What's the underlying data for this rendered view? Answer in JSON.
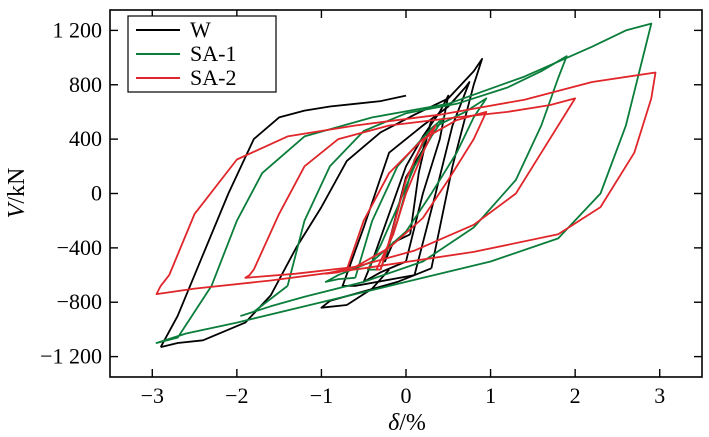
{
  "chart_data": {
    "type": "line",
    "title": "",
    "xlabel_symbol": "δ",
    "xlabel_unit": "/%",
    "ylabel_symbol": "V",
    "ylabel_unit": "/kN",
    "xlim": [
      -3.5,
      3.5
    ],
    "ylim": [
      -1350,
      1350
    ],
    "x_ticks": [
      -3,
      -2,
      -1,
      0,
      1,
      2,
      3
    ],
    "x_tick_labels": [
      "−3",
      "−2",
      "−1",
      "0",
      "1",
      "2",
      "3"
    ],
    "y_ticks": [
      -1200,
      -800,
      -400,
      0,
      400,
      800,
      1200
    ],
    "y_tick_labels": [
      "−1 200",
      "−800",
      "−400",
      "0",
      "400",
      "800",
      "1 200"
    ],
    "grid": false,
    "legend_position": "top-left",
    "series": [
      {
        "name": "W",
        "color": "#000000",
        "loops": [
          [
            [
              0.05,
              -300
            ],
            [
              0.15,
              150
            ],
            [
              0.25,
              420
            ],
            [
              0.3,
              540
            ],
            [
              0.2,
              320
            ],
            [
              0,
              120
            ],
            [
              -0.1,
              -120
            ],
            [
              -0.2,
              -360
            ],
            [
              -0.25,
              -500
            ],
            [
              -0.15,
              -360
            ],
            [
              0.05,
              -300
            ]
          ],
          [
            [
              0,
              -500
            ],
            [
              0.2,
              0
            ],
            [
              0.4,
              400
            ],
            [
              0.5,
              720
            ],
            [
              0.4,
              600
            ],
            [
              0.2,
              420
            ],
            [
              0,
              200
            ],
            [
              -0.2,
              -150
            ],
            [
              -0.4,
              -500
            ],
            [
              -0.5,
              -650
            ],
            [
              -0.3,
              -580
            ],
            [
              0,
              -500
            ]
          ],
          [
            [
              0.1,
              -600
            ],
            [
              0.35,
              0
            ],
            [
              0.55,
              500
            ],
            [
              0.75,
              820
            ],
            [
              0.7,
              780
            ],
            [
              0.5,
              640
            ],
            [
              0.2,
              500
            ],
            [
              -0.2,
              300
            ],
            [
              -0.5,
              -250
            ],
            [
              -0.75,
              -680
            ],
            [
              -0.6,
              -680
            ],
            [
              0.1,
              -600
            ]
          ],
          [
            [
              0.3,
              -550
            ],
            [
              0.55,
              200
            ],
            [
              0.8,
              800
            ],
            [
              0.9,
              990
            ],
            [
              0.8,
              900
            ],
            [
              0.5,
              700
            ],
            [
              0.1,
              580
            ],
            [
              -0.3,
              450
            ],
            [
              -0.7,
              240
            ],
            [
              -1.0,
              -100
            ],
            [
              -1.3,
              -400
            ],
            [
              -1.6,
              -750
            ],
            [
              -1.9,
              -950
            ],
            [
              -2.4,
              -1080
            ],
            [
              -2.7,
              -1100
            ],
            [
              -2.9,
              -1130
            ]
          ],
          [
            [
              -2.9,
              -1130
            ],
            [
              -2.7,
              -900
            ],
            [
              -2.4,
              -450
            ],
            [
              -2.1,
              0
            ],
            [
              -1.8,
              400
            ],
            [
              -1.5,
              560
            ],
            [
              -1.2,
              610
            ],
            [
              -0.9,
              640
            ],
            [
              -0.6,
              660
            ],
            [
              -0.3,
              680
            ],
            [
              0,
              720
            ]
          ],
          [
            [
              0.3,
              -550
            ],
            [
              -0.1,
              -650
            ],
            [
              -0.5,
              -720
            ],
            [
              -0.9,
              -790
            ],
            [
              -1.0,
              -840
            ],
            [
              -0.7,
              -820
            ],
            [
              -0.4,
              -700
            ],
            [
              -0.2,
              -560
            ]
          ]
        ]
      },
      {
        "name": "SA-1",
        "color": "#0a7d3b",
        "loops": [
          [
            [
              -0.3,
              -560
            ],
            [
              -0.1,
              -200
            ],
            [
              0.1,
              250
            ],
            [
              0.3,
              480
            ],
            [
              0.45,
              560
            ],
            [
              0.3,
              420
            ],
            [
              0.1,
              200
            ],
            [
              -0.1,
              -100
            ],
            [
              -0.3,
              -380
            ],
            [
              -0.45,
              -560
            ],
            [
              -0.3,
              -560
            ]
          ],
          [
            [
              -0.6,
              -620
            ],
            [
              -0.4,
              -200
            ],
            [
              -0.1,
              200
            ],
            [
              0.3,
              480
            ],
            [
              0.7,
              600
            ],
            [
              0.95,
              700
            ],
            [
              0.8,
              560
            ],
            [
              0.6,
              300
            ],
            [
              0.3,
              0
            ],
            [
              0,
              -280
            ],
            [
              -0.4,
              -500
            ],
            [
              -0.8,
              -600
            ],
            [
              -0.95,
              -650
            ],
            [
              -0.8,
              -630
            ],
            [
              -0.6,
              -620
            ]
          ],
          [
            [
              -1.4,
              -680
            ],
            [
              -1.2,
              -200
            ],
            [
              -0.9,
              200
            ],
            [
              -0.5,
              460
            ],
            [
              0,
              590
            ],
            [
              0.6,
              660
            ],
            [
              1.2,
              780
            ],
            [
              1.6,
              900
            ],
            [
              1.9,
              1010
            ],
            [
              1.8,
              850
            ],
            [
              1.6,
              500
            ],
            [
              1.3,
              100
            ],
            [
              0.8,
              -250
            ],
            [
              0.2,
              -500
            ],
            [
              -0.5,
              -650
            ],
            [
              -1.2,
              -760
            ],
            [
              -1.6,
              -830
            ],
            [
              -1.95,
              -900
            ],
            [
              -1.8,
              -870
            ],
            [
              -1.4,
              -680
            ]
          ],
          [
            [
              -2.3,
              -680
            ],
            [
              -2.0,
              -200
            ],
            [
              -1.7,
              150
            ],
            [
              -1.2,
              420
            ],
            [
              -0.4,
              560
            ],
            [
              0.5,
              660
            ],
            [
              1.4,
              860
            ],
            [
              2.2,
              1080
            ],
            [
              2.6,
              1200
            ],
            [
              2.9,
              1250
            ],
            [
              2.8,
              1000
            ],
            [
              2.6,
              500
            ],
            [
              2.3,
              0
            ],
            [
              1.8,
              -330
            ],
            [
              1.0,
              -500
            ],
            [
              0,
              -650
            ],
            [
              -1.0,
              -800
            ],
            [
              -2.0,
              -950
            ],
            [
              -2.6,
              -1030
            ],
            [
              -2.95,
              -1100
            ],
            [
              -2.7,
              -1060
            ],
            [
              -2.3,
              -680
            ]
          ]
        ]
      },
      {
        "name": "SA-2",
        "color": "#e0262a",
        "loops": [
          [
            [
              -0.3,
              -560
            ],
            [
              -0.15,
              -250
            ],
            [
              0,
              100
            ],
            [
              0.2,
              380
            ],
            [
              0.35,
              500
            ],
            [
              0.2,
              300
            ],
            [
              0,
              0
            ],
            [
              -0.15,
              -300
            ],
            [
              -0.35,
              -560
            ],
            [
              -0.3,
              -560
            ]
          ],
          [
            [
              -0.7,
              -560
            ],
            [
              -0.5,
              -200
            ],
            [
              -0.2,
              150
            ],
            [
              0.2,
              400
            ],
            [
              0.6,
              540
            ],
            [
              0.95,
              600
            ],
            [
              0.8,
              400
            ],
            [
              0.5,
              100
            ],
            [
              0.2,
              -180
            ],
            [
              -0.2,
              -400
            ],
            [
              -0.6,
              -540
            ],
            [
              -0.95,
              -590
            ],
            [
              -0.8,
              -580
            ],
            [
              -0.7,
              -560
            ]
          ],
          [
            [
              -1.8,
              -560
            ],
            [
              -1.5,
              -150
            ],
            [
              -1.2,
              200
            ],
            [
              -0.8,
              400
            ],
            [
              -0.2,
              500
            ],
            [
              0.6,
              560
            ],
            [
              1.2,
              600
            ],
            [
              1.7,
              650
            ],
            [
              2.0,
              700
            ],
            [
              1.9,
              600
            ],
            [
              1.6,
              300
            ],
            [
              1.3,
              0
            ],
            [
              0.8,
              -230
            ],
            [
              0.1,
              -420
            ],
            [
              -0.6,
              -540
            ],
            [
              -1.3,
              -590
            ],
            [
              -1.9,
              -620
            ],
            [
              -1.85,
              -600
            ],
            [
              -1.8,
              -560
            ]
          ],
          [
            [
              -2.8,
              -600
            ],
            [
              -2.5,
              -150
            ],
            [
              -2.0,
              250
            ],
            [
              -1.4,
              420
            ],
            [
              -0.6,
              500
            ],
            [
              0.4,
              580
            ],
            [
              1.4,
              690
            ],
            [
              2.2,
              820
            ],
            [
              2.95,
              890
            ],
            [
              2.9,
              700
            ],
            [
              2.7,
              300
            ],
            [
              2.3,
              -100
            ],
            [
              1.8,
              -300
            ],
            [
              0.8,
              -430
            ],
            [
              -0.5,
              -550
            ],
            [
              -1.6,
              -640
            ],
            [
              -2.5,
              -700
            ],
            [
              -2.95,
              -740
            ],
            [
              -2.9,
              -680
            ],
            [
              -2.8,
              -600
            ]
          ]
        ]
      }
    ]
  }
}
